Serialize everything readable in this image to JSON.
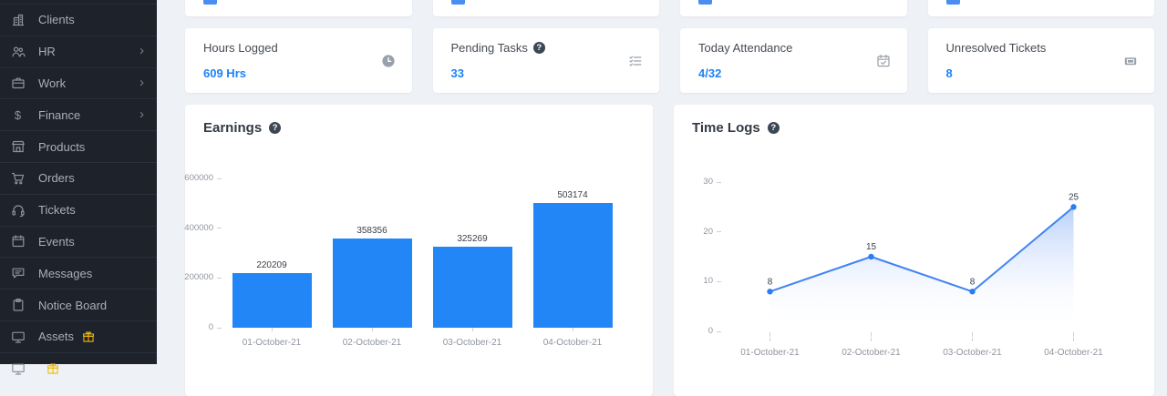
{
  "sidebar": {
    "items": [
      {
        "label": "Clients",
        "icon": "building-icon",
        "chevron": false,
        "gift": false
      },
      {
        "label": "HR",
        "icon": "people-icon",
        "chevron": true,
        "gift": false
      },
      {
        "label": "Work",
        "icon": "briefcase-icon",
        "chevron": true,
        "gift": false
      },
      {
        "label": "Finance",
        "icon": "dollar-icon",
        "chevron": true,
        "gift": false
      },
      {
        "label": "Products",
        "icon": "store-icon",
        "chevron": false,
        "gift": false
      },
      {
        "label": "Orders",
        "icon": "cart-icon",
        "chevron": false,
        "gift": false
      },
      {
        "label": "Tickets",
        "icon": "headset-icon",
        "chevron": false,
        "gift": false
      },
      {
        "label": "Events",
        "icon": "calendar-icon",
        "chevron": false,
        "gift": false
      },
      {
        "label": "Messages",
        "icon": "chat-icon",
        "chevron": false,
        "gift": false
      },
      {
        "label": "Notice Board",
        "icon": "clipboard-icon",
        "chevron": false,
        "gift": false
      },
      {
        "label": "Assets",
        "icon": "monitor-icon",
        "chevron": false,
        "gift": true
      }
    ],
    "partial_item": {
      "label": "",
      "icon": "monitor-icon",
      "gift": true
    }
  },
  "stat_cards": [
    {
      "title": "Hours Logged",
      "value": "609 Hrs",
      "icon": "clock-icon",
      "help": false
    },
    {
      "title": "Pending Tasks",
      "value": "33",
      "icon": "checklist-icon",
      "help": true
    },
    {
      "title": "Today Attendance",
      "value": "4/32",
      "icon": "calendar-check-icon",
      "help": false
    },
    {
      "title": "Unresolved Tickets",
      "value": "8",
      "icon": "ticket-icon",
      "help": false
    }
  ],
  "icons": {
    "help_glyph": "?",
    "chevron_glyph": "›"
  },
  "colors": {
    "accent_blue": "#1d82f5",
    "bar_blue": "#2286f7",
    "line_blue": "#3f83f3",
    "dot_blue": "#2b7cf5",
    "gift_yellow": "#f0b90b",
    "sidebar_bg": "#1d222b",
    "page_bg": "#eef1f5"
  },
  "chart_data": [
    {
      "type": "bar",
      "title": "Earnings",
      "categories": [
        "01-October-21",
        "02-October-21",
        "03-October-21",
        "04-October-21"
      ],
      "values": [
        220209,
        358356,
        325269,
        503174
      ],
      "ylim": [
        0,
        600000
      ],
      "yticks": [
        0,
        200000,
        400000,
        600000
      ],
      "data_labels": true,
      "grid": false,
      "legend": "none"
    },
    {
      "type": "area",
      "title": "Time Logs",
      "categories": [
        "01-October-21",
        "02-October-21",
        "03-October-21",
        "04-October-21"
      ],
      "values": [
        8,
        15,
        8,
        25
      ],
      "ylim": [
        0,
        30
      ],
      "yticks": [
        0,
        10,
        20,
        30
      ],
      "data_labels": true,
      "grid": false,
      "legend": "none",
      "fill": "gradient-blue-to-white"
    }
  ]
}
